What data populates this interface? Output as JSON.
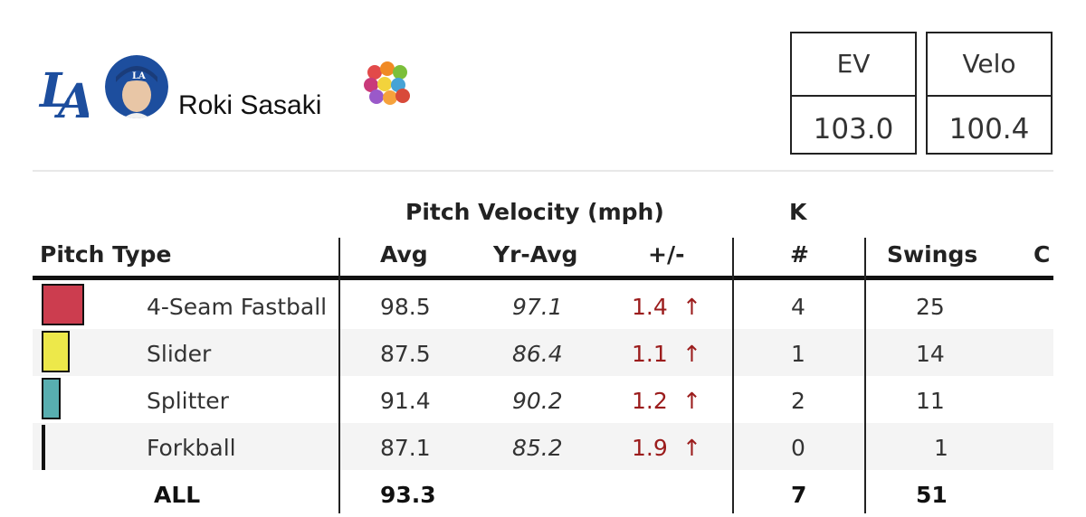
{
  "player": {
    "name": "Roki Sasaki",
    "team_logo_text": "LA",
    "team_color": "#1d4e9e"
  },
  "stat_boxes": [
    {
      "label": "EV",
      "value": "103.0"
    },
    {
      "label": "Velo",
      "value": "100.4"
    }
  ],
  "table": {
    "group_headers": {
      "velocity": "Pitch Velocity (mph)",
      "k": "K"
    },
    "columns": {
      "pitch_type": "Pitch Type",
      "avg": "Avg",
      "yr_avg": "Yr-Avg",
      "diff": "+/-",
      "k_count": "#",
      "swings": "Swings",
      "cut": "C"
    },
    "rows": [
      {
        "pitch": "4-Seam Fastball",
        "color": "#cc3d4f",
        "avg": "98.5",
        "yr_avg": "97.1",
        "diff": "1.4",
        "arrow": "↑",
        "k": "4",
        "swings": "25",
        "usage_pct": 0.78
      },
      {
        "pitch": "Slider",
        "color": "#ede84a",
        "avg": "87.5",
        "yr_avg": "86.4",
        "diff": "1.1",
        "arrow": "↑",
        "k": "1",
        "swings": "14",
        "usage_pct": 0.5
      },
      {
        "pitch": "Splitter",
        "color": "#58aeb0",
        "avg": "91.4",
        "yr_avg": "90.2",
        "diff": "1.2",
        "arrow": "↑",
        "k": "2",
        "swings": "11",
        "usage_pct": 0.33
      },
      {
        "pitch": "Forkball",
        "color": "#111111",
        "avg": "87.1",
        "yr_avg": "85.2",
        "diff": "1.9",
        "arrow": "↑",
        "k": "0",
        "swings": "1",
        "usage_pct": 0.05
      }
    ],
    "total": {
      "label": "ALL",
      "avg": "93.3",
      "k": "7",
      "swings": "51"
    }
  }
}
